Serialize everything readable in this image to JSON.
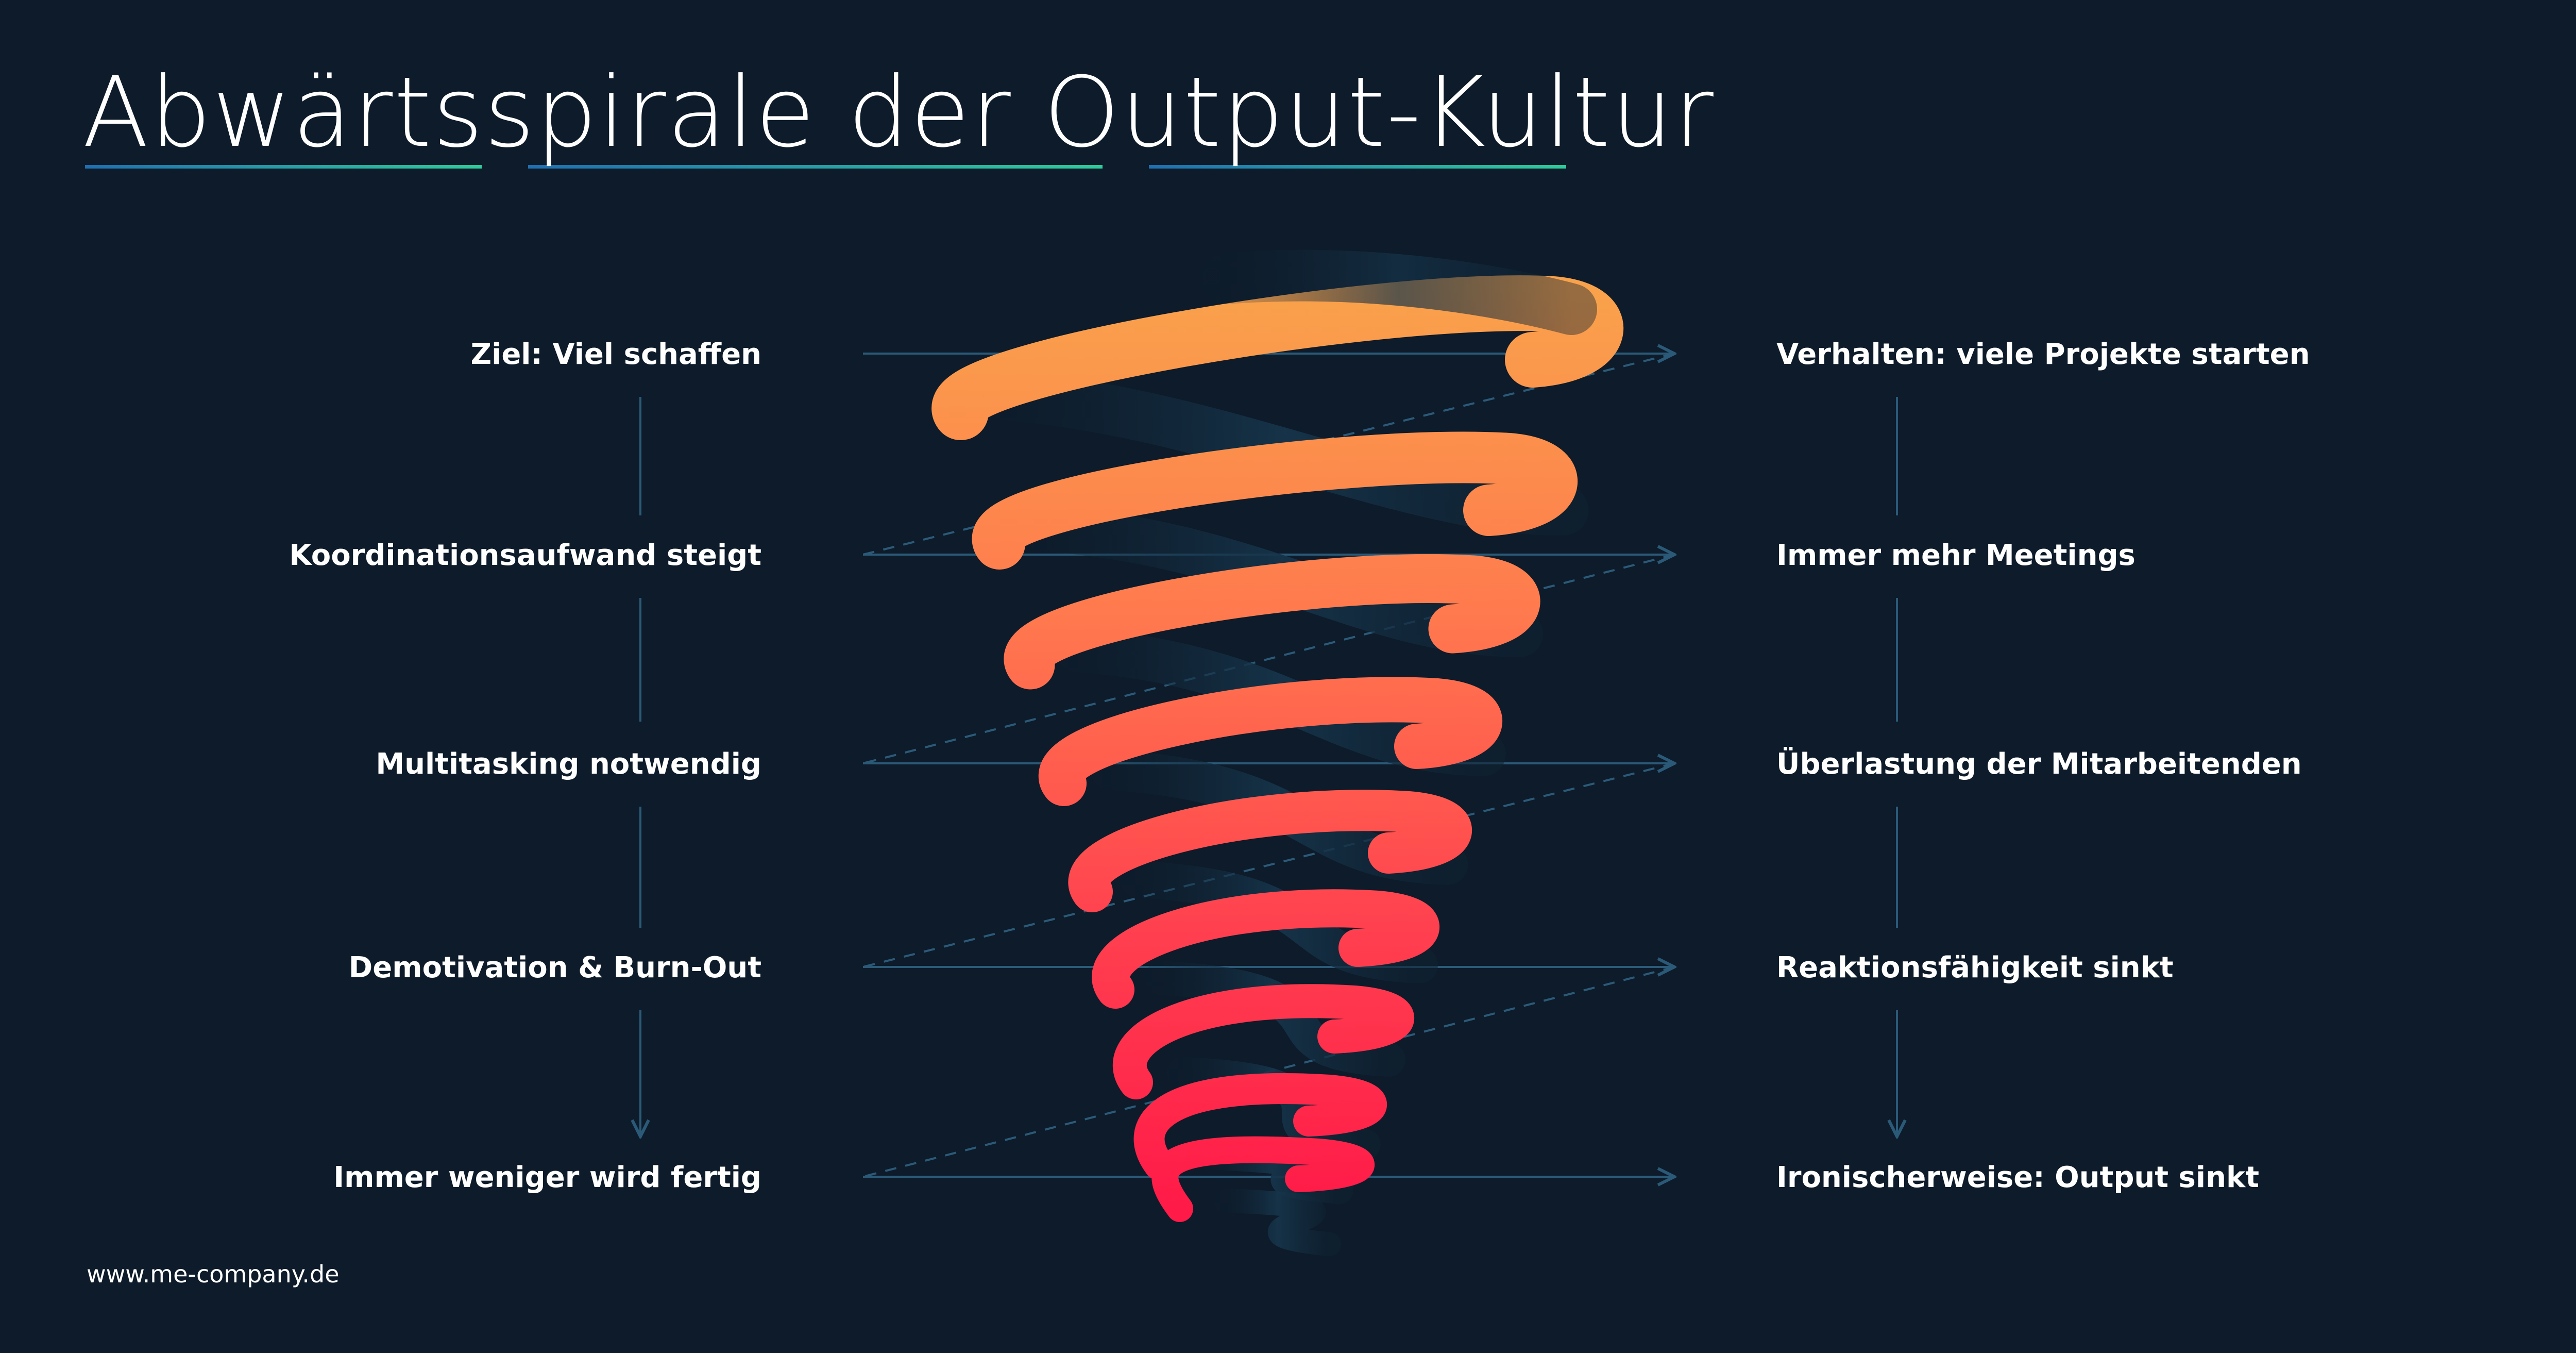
{
  "title": "Abwärtsspirale der Output-Kultur",
  "left_steps": [
    "Ziel: Viel schaffen",
    "Koordinationsaufwand steigt",
    "Multitasking notwendig",
    "Demotivation & Burn-Out",
    "Immer weniger wird fertig"
  ],
  "right_steps": [
    "Verhalten: viele Projekte starten",
    "Immer mehr Meetings",
    "Überlastung der Mitarbeitenden",
    "Reaktionsfähigkeit sinkt",
    "Ironischerweise: Output sinkt"
  ],
  "footer": "www.me-company.de",
  "colors": {
    "background": "#0d1b2a",
    "text": "#ffffff",
    "connector": "#2b5a78",
    "title_underline_start": "#1f6fb0",
    "title_underline_end": "#2ecc9a",
    "spiral_top": "#f9a24b",
    "spiral_bottom": "#ff1a48"
  }
}
